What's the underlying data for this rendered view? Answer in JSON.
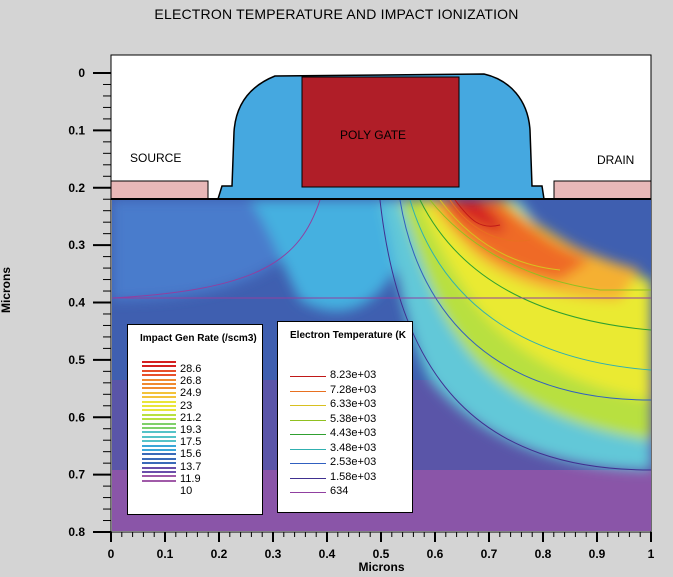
{
  "chart_data": {
    "type": "heatmap",
    "title": "ELECTRON TEMPERATURE AND IMPACT IONIZATION",
    "xlabel": "Microns",
    "ylabel": "Microns",
    "xlim": [
      0,
      1
    ],
    "ylim": [
      0.8,
      0
    ],
    "xticks": [
      "0",
      "0.1",
      "0.2",
      "0.3",
      "0.4",
      "0.5",
      "0.6",
      "0.7",
      "0.8",
      "0.9",
      "1"
    ],
    "yticks": [
      "0",
      "0.1",
      "0.2",
      "0.3",
      "0.4",
      "0.5",
      "0.6",
      "0.7",
      "0.8"
    ],
    "regions": {
      "source": "SOURCE",
      "drain": "DRAIN",
      "gate": "POLY GATE"
    },
    "impact_legend": {
      "title": "Impact Gen Rate (/scm3)",
      "labels": [
        "28.6",
        "26.8",
        "24.9",
        "23",
        "21.2",
        "19.3",
        "17.5",
        "15.6",
        "13.7",
        "11.9",
        "10"
      ],
      "colors": [
        "#d42020",
        "#e8502a",
        "#f08a30",
        "#f3c33a",
        "#e9e53a",
        "#b9e040",
        "#7fd06a",
        "#55c3c8",
        "#3aa6d8",
        "#3a6ab8",
        "#6a4eaa",
        "#a05aa8"
      ]
    },
    "temperature_legend": {
      "title": "Electron Temperature (K",
      "entries": [
        {
          "label": "8.23e+03",
          "color": "#c01818"
        },
        {
          "label": "7.28e+03",
          "color": "#e87020"
        },
        {
          "label": "6.33e+03",
          "color": "#d8c020"
        },
        {
          "label": "5.38e+03",
          "color": "#90c020"
        },
        {
          "label": "4.43e+03",
          "color": "#30a030"
        },
        {
          "label": "3.48e+03",
          "color": "#30b0b0"
        },
        {
          "label": "2.53e+03",
          "color": "#3060c0"
        },
        {
          "label": "1.58e+03",
          "color": "#403090"
        },
        {
          "label": "634",
          "color": "#9040a0"
        }
      ]
    }
  }
}
